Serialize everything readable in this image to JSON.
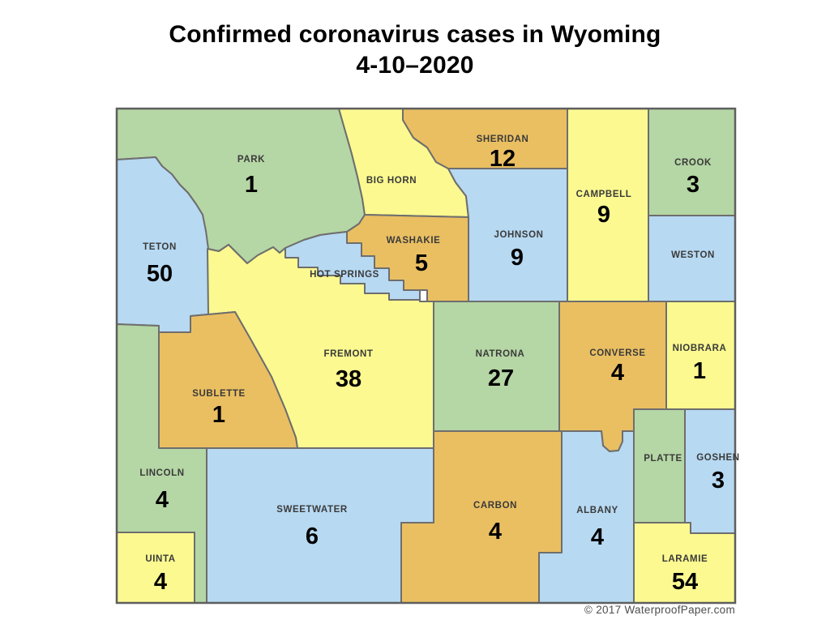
{
  "title": {
    "line1": "Confirmed coronavirus cases in Wyoming",
    "line2": "4-10–2020"
  },
  "watermark": "© 2017 WaterproofPaper.com",
  "palette": {
    "green": "#b5d6a5",
    "blue": "#b7d9f2",
    "yellow": "#fbf990",
    "orange": "#eabf62",
    "county_border": "#6e6e6e",
    "map_border": "#5e5e5e",
    "label_text": "#3a3a3a",
    "number_text": "#000000"
  },
  "map_data": {
    "type": "choropleth-map",
    "region": "Wyoming counties",
    "date_shown": "4-10-2020",
    "counties": [
      {
        "id": "park",
        "name": "PARK",
        "cases": 1,
        "color": "green"
      },
      {
        "id": "bighorn",
        "name": "BIG HORN",
        "cases": null,
        "color": "yellow"
      },
      {
        "id": "sheridan",
        "name": "SHERIDAN",
        "cases": 12,
        "color": "orange"
      },
      {
        "id": "campbell",
        "name": "CAMPBELL",
        "cases": 9,
        "color": "yellow"
      },
      {
        "id": "crook",
        "name": "CROOK",
        "cases": 3,
        "color": "green"
      },
      {
        "id": "weston",
        "name": "WESTON",
        "cases": null,
        "color": "blue"
      },
      {
        "id": "teton",
        "name": "TETON",
        "cases": 50,
        "color": "blue"
      },
      {
        "id": "hotsprings",
        "name": "HOT SPRINGS",
        "cases": null,
        "color": "blue"
      },
      {
        "id": "washakie",
        "name": "WASHAKIE",
        "cases": 5,
        "color": "orange"
      },
      {
        "id": "johnson",
        "name": "JOHNSON",
        "cases": 9,
        "color": "blue"
      },
      {
        "id": "fremont",
        "name": "FREMONT",
        "cases": 38,
        "color": "yellow"
      },
      {
        "id": "natrona",
        "name": "NATRONA",
        "cases": 27,
        "color": "green"
      },
      {
        "id": "converse",
        "name": "CONVERSE",
        "cases": 4,
        "color": "orange"
      },
      {
        "id": "niobrara",
        "name": "NIOBRARA",
        "cases": 1,
        "color": "yellow"
      },
      {
        "id": "sublette",
        "name": "SUBLETTE",
        "cases": 1,
        "color": "orange"
      },
      {
        "id": "lincoln",
        "name": "LINCOLN",
        "cases": 4,
        "color": "green"
      },
      {
        "id": "uinta",
        "name": "UINTA",
        "cases": 4,
        "color": "yellow"
      },
      {
        "id": "sweetwater",
        "name": "SWEETWATER",
        "cases": 6,
        "color": "blue"
      },
      {
        "id": "carbon",
        "name": "CARBON",
        "cases": 4,
        "color": "orange"
      },
      {
        "id": "albany",
        "name": "ALBANY",
        "cases": 4,
        "color": "blue"
      },
      {
        "id": "platte",
        "name": "PLATTE",
        "cases": null,
        "color": "green"
      },
      {
        "id": "goshen",
        "name": "GOSHEN",
        "cases": 3,
        "color": "blue"
      },
      {
        "id": "laramie",
        "name": "LARAMIE",
        "cases": 54,
        "color": "yellow"
      }
    ]
  }
}
